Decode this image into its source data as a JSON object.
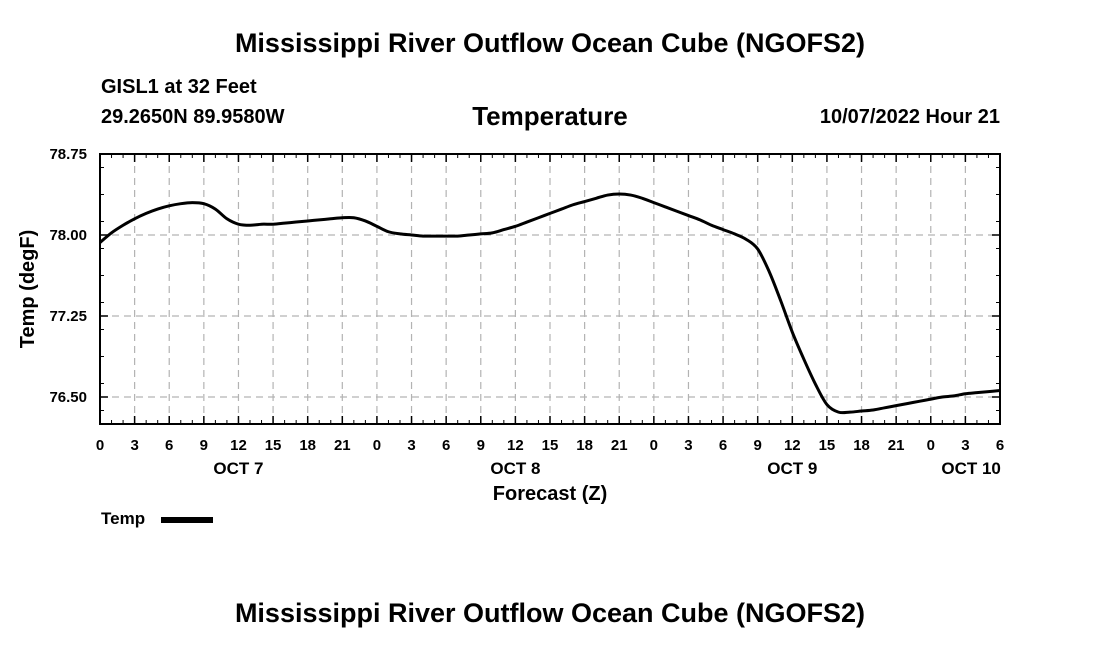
{
  "header": {
    "title": "Mississippi River Outflow Ocean Cube (NGOFS2)",
    "station": "GISL1 at 32 Feet",
    "coordinates": "29.2650N  89.9580W",
    "variable": "Temperature",
    "datetime": "10/07/2022 Hour 21"
  },
  "footer": {
    "title": "Mississippi River Outflow Ocean Cube (NGOFS2)"
  },
  "chart_data": {
    "type": "line",
    "title": "Temperature",
    "xlabel": "Forecast (Z)",
    "ylabel": "Temp (degF)",
    "x_unit": "hours since OCT 7 00Z",
    "xlim": [
      0,
      78
    ],
    "ylim": [
      76.25,
      78.75
    ],
    "grid": true,
    "x_ticks": [
      0,
      3,
      6,
      9,
      12,
      15,
      18,
      21,
      24,
      27,
      30,
      33,
      36,
      39,
      42,
      45,
      48,
      51,
      54,
      57,
      60,
      63,
      66,
      69,
      72,
      75,
      78
    ],
    "x_tick_labels": [
      "0",
      "3",
      "6",
      "9",
      "12",
      "15",
      "18",
      "21",
      "0",
      "3",
      "6",
      "9",
      "12",
      "15",
      "18",
      "21",
      "0",
      "3",
      "6",
      "9",
      "12",
      "15",
      "18",
      "21",
      "0",
      "3",
      "6"
    ],
    "day_labels": [
      {
        "x": 12,
        "label": "OCT 7"
      },
      {
        "x": 36,
        "label": "OCT 8"
      },
      {
        "x": 60,
        "label": "OCT 9"
      },
      {
        "x": 75.5,
        "label": "OCT 10"
      }
    ],
    "y_ticks": [
      76.5,
      77.25,
      78.0,
      78.75
    ],
    "y_tick_labels": [
      "76.50",
      "77.25",
      "78.00",
      "78.75"
    ],
    "legend": [
      {
        "name": "Temp",
        "position": "bottom-left"
      }
    ],
    "series": [
      {
        "name": "Temp",
        "x": [
          0,
          1,
          2,
          3,
          4,
          5,
          6,
          7,
          8,
          9,
          10,
          11,
          12,
          13,
          14,
          15,
          16,
          17,
          18,
          19,
          20,
          21,
          22,
          23,
          24,
          25,
          26,
          27,
          28,
          29,
          30,
          31,
          32,
          33,
          34,
          35,
          36,
          37,
          38,
          39,
          40,
          41,
          42,
          43,
          44,
          45,
          46,
          47,
          48,
          49,
          50,
          51,
          52,
          53,
          54,
          55,
          56,
          57,
          58,
          59,
          60,
          61,
          62,
          63,
          64,
          65,
          66,
          67,
          68,
          69,
          70,
          71,
          72,
          73,
          74,
          75,
          76,
          77,
          78
        ],
        "values": [
          77.93,
          78.02,
          78.09,
          78.15,
          78.2,
          78.24,
          78.27,
          78.29,
          78.3,
          78.29,
          78.24,
          78.15,
          78.1,
          78.09,
          78.1,
          78.1,
          78.11,
          78.12,
          78.13,
          78.14,
          78.15,
          78.16,
          78.16,
          78.13,
          78.08,
          78.03,
          78.01,
          78.0,
          77.99,
          77.99,
          77.99,
          77.99,
          78.0,
          78.01,
          78.02,
          78.05,
          78.08,
          78.12,
          78.16,
          78.2,
          78.24,
          78.28,
          78.31,
          78.34,
          78.37,
          78.38,
          78.37,
          78.34,
          78.3,
          78.26,
          78.22,
          78.18,
          78.14,
          78.09,
          78.05,
          78.01,
          77.96,
          77.87,
          77.66,
          77.39,
          77.1,
          76.85,
          76.62,
          76.43,
          76.36,
          76.36,
          76.37,
          76.38,
          76.4,
          76.42,
          76.44,
          76.46,
          76.48,
          76.5,
          76.51,
          76.53,
          76.54,
          76.55,
          76.56
        ]
      }
    ]
  }
}
